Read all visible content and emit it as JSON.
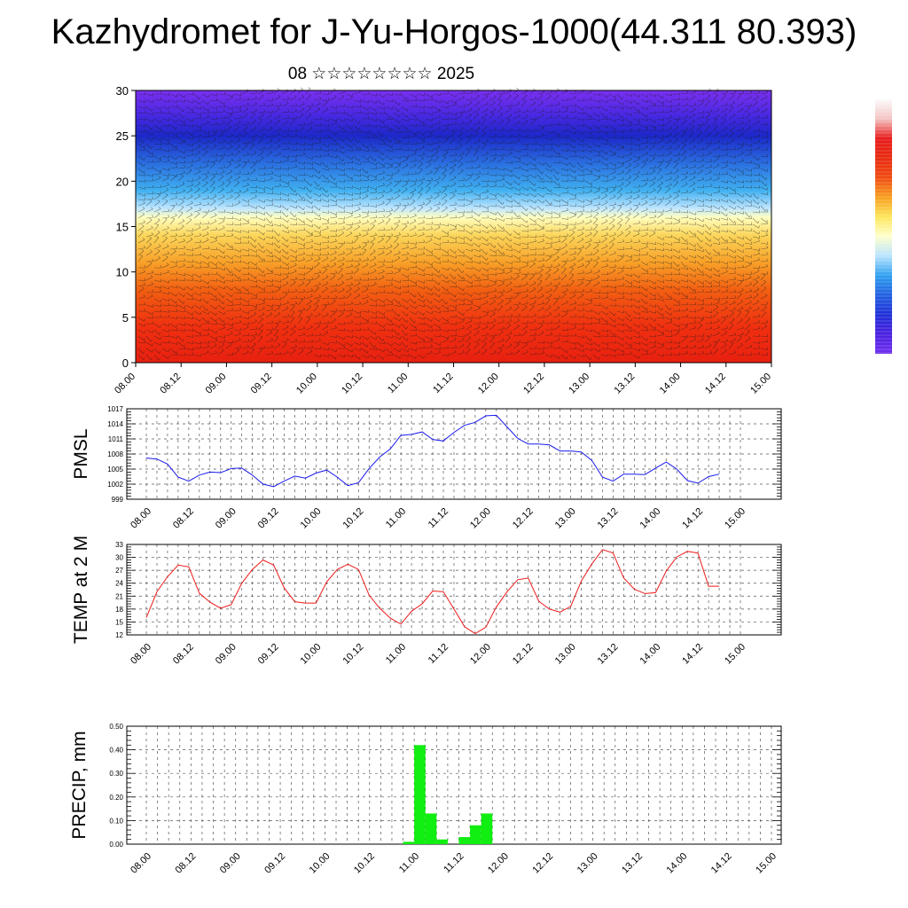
{
  "title": "Kazhydromet for J-Yu-Horgos-1000(44.311 80.393)",
  "subtitle": "08 ☆☆☆☆☆☆☆☆ 2025",
  "time_labels": [
    "08.00",
    "08.12",
    "09.00",
    "09.12",
    "10.00",
    "10.12",
    "11.00",
    "11.12",
    "12.00",
    "12.12",
    "13.00",
    "13.12",
    "14.00",
    "14.12",
    "15.00"
  ],
  "chart_data": [
    {
      "type": "heatmap",
      "ylim": [
        0,
        30
      ],
      "yticks": [
        0,
        5,
        10,
        15,
        20,
        25,
        30
      ],
      "xlim": [
        0,
        14
      ],
      "colorbar_colors": [
        "#fbfbfb",
        "#f4c3c3",
        "#e81a1a",
        "#e82a10",
        "#f04b10",
        "#f8a020",
        "#fde65a",
        "#ffffcc",
        "#b9e4ff",
        "#2fa0f0",
        "#2060e0",
        "#2030d8",
        "#4a20e0",
        "#7030f0"
      ],
      "color_bands": [
        {
          "alt": 0,
          "color": "#e82010"
        },
        {
          "alt": 4,
          "color": "#f03010"
        },
        {
          "alt": 8,
          "color": "#f25f12"
        },
        {
          "alt": 11,
          "color": "#f8a028"
        },
        {
          "alt": 14,
          "color": "#fbd55a"
        },
        {
          "alt": 16,
          "color": "#ffffc0"
        },
        {
          "alt": 17,
          "color": "#bfe6ff"
        },
        {
          "alt": 19,
          "color": "#40b0f0"
        },
        {
          "alt": 22,
          "color": "#2a6ee0"
        },
        {
          "alt": 25,
          "color": "#1c28c8"
        },
        {
          "alt": 27,
          "color": "#4428e0"
        },
        {
          "alt": 30,
          "color": "#7a30f0"
        }
      ]
    },
    {
      "type": "line",
      "ylabel": "PMSL",
      "ylim": [
        999,
        1017
      ],
      "yticks": [
        999,
        1002,
        1005,
        1008,
        1011,
        1014,
        1017
      ],
      "x": [
        0,
        0.25,
        0.5,
        0.75,
        1,
        1.25,
        1.5,
        1.75,
        2,
        2.25,
        2.5,
        2.75,
        3,
        3.25,
        3.5,
        3.75,
        4,
        4.25,
        4.5,
        4.75,
        5,
        5.25,
        5.5,
        5.75,
        6,
        6.25,
        6.5,
        6.75,
        7,
        7.25,
        7.5,
        7.75,
        8,
        8.25,
        8.5,
        8.75,
        9,
        9.25,
        9.5,
        9.75,
        10,
        10.25,
        10.5,
        10.75,
        11,
        11.25,
        11.5,
        11.75,
        12,
        12.25,
        12.5,
        12.75,
        13,
        13.25,
        13.5
      ],
      "values": [
        1007.2,
        1007,
        1006,
        1003.4,
        1002.6,
        1003.8,
        1004.4,
        1004.3,
        1005.1,
        1005.2,
        1003.8,
        1002,
        1001.5,
        1002.6,
        1003.6,
        1003.2,
        1004.2,
        1004.8,
        1003.4,
        1001.7,
        1002.3,
        1005.1,
        1007.4,
        1009,
        1011.7,
        1011.9,
        1012.4,
        1010.9,
        1010.6,
        1012.3,
        1013.7,
        1014.3,
        1015.6,
        1015.7,
        1013.4,
        1011.1,
        1010,
        1010,
        1009.8,
        1008.6,
        1008.6,
        1008.4,
        1006.7,
        1003.4,
        1002.6,
        1004,
        1004,
        1003.9,
        1005.2,
        1006.4,
        1005,
        1002.7,
        1002.2,
        1003.5,
        1004
      ]
    },
    {
      "type": "line",
      "ylabel": "TEMP at 2 M",
      "ylim": [
        12,
        33
      ],
      "yticks": [
        12.0,
        15.0,
        18.0,
        21.0,
        24.0,
        27.0,
        30.0,
        33.0
      ],
      "x": [
        0,
        0.25,
        0.5,
        0.75,
        1,
        1.25,
        1.5,
        1.75,
        2,
        2.25,
        2.5,
        2.75,
        3,
        3.25,
        3.5,
        3.75,
        4,
        4.25,
        4.5,
        4.75,
        5,
        5.25,
        5.5,
        5.75,
        6,
        6.25,
        6.5,
        6.75,
        7,
        7.25,
        7.5,
        7.75,
        8,
        8.25,
        8.5,
        8.75,
        9,
        9.25,
        9.5,
        9.75,
        10,
        10.25,
        10.5,
        10.75,
        11,
        11.25,
        11.5,
        11.75,
        12,
        12.25,
        12.5,
        12.75,
        13,
        13.25,
        13.5
      ],
      "values": [
        16,
        22,
        25.5,
        28.2,
        27.8,
        21.7,
        19.6,
        18.2,
        19,
        24,
        27.2,
        29.4,
        28.2,
        22.9,
        19.7,
        19.4,
        19.4,
        24.3,
        27.2,
        28.4,
        27.2,
        21.2,
        18.2,
        15.9,
        14.5,
        17.5,
        19.2,
        22.2,
        22,
        18,
        13.9,
        12.3,
        13.8,
        18.5,
        22,
        24.8,
        25.2,
        19.8,
        18,
        17.3,
        18.6,
        24.5,
        28.5,
        31.8,
        31,
        25.2,
        22.6,
        21.6,
        21.8,
        26.8,
        30.1,
        31.4,
        31,
        23.3,
        23.3
      ]
    },
    {
      "type": "bar",
      "ylabel": "PRECIP, mm",
      "ylim": [
        0,
        0.5
      ],
      "yticks": [
        "0.00",
        "0.10",
        "0.20",
        "0.30",
        "0.40",
        "0.50"
      ],
      "x": [
        5.75,
        6,
        6.25,
        6.5,
        7,
        7.25,
        7.5
      ],
      "values": [
        0.01,
        0.42,
        0.13,
        0.02,
        0.03,
        0.08,
        0.13
      ],
      "bar_color": "#11ee11"
    }
  ]
}
